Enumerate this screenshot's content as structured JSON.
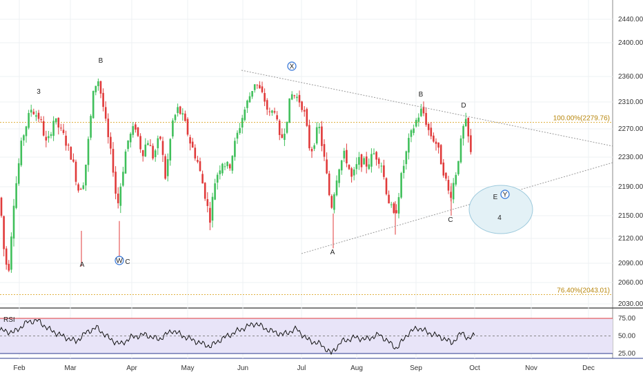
{
  "chart_data": {
    "type": "candlestick",
    "price_axis": {
      "ticks": [
        2030,
        2060,
        2090,
        2120,
        2150,
        2190,
        2230,
        2270,
        2310,
        2360,
        2400,
        2440
      ],
      "tick_labels": [
        "2030.00",
        "2060.00",
        "2090.00",
        "2120.00",
        "2150.00",
        "2190.00",
        "2230.00",
        "2270.00",
        "2310.00",
        "2360.00",
        "2400.00",
        "2440.00"
      ]
    },
    "time_axis": {
      "months": [
        "Feb",
        "Mar",
        "Apr",
        "May",
        "Jun",
        "Jul",
        "Aug",
        "Sep",
        "Oct",
        "Nov",
        "Dec"
      ]
    },
    "fib_levels": [
      {
        "label": "100.00%(2279.76)",
        "value": 2279.76,
        "color": "#e0b040"
      },
      {
        "label": "76.40%(2043.01)",
        "value": 2043.01,
        "color": "#e0b040"
      }
    ],
    "wave_labels": {
      "w3": "3",
      "B1": "B",
      "A1": "A",
      "W": "W",
      "C1": "C",
      "X": "X",
      "A2": "A",
      "B2": "B",
      "C2": "C",
      "D": "D",
      "E": "E",
      "Y": "Y",
      "w4": "4"
    },
    "rsi": {
      "label": "RSI",
      "levels": [
        75,
        50,
        25
      ],
      "level_labels": [
        "75.00",
        "50.00",
        "25.00"
      ]
    },
    "colors": {
      "up": "#3fbf5a",
      "down": "#e03a3a",
      "wave_major": "#d81b60",
      "circle": "#2b6fd6",
      "rsi_line": "#111111",
      "rsi_band": "#e8e4f8"
    }
  }
}
